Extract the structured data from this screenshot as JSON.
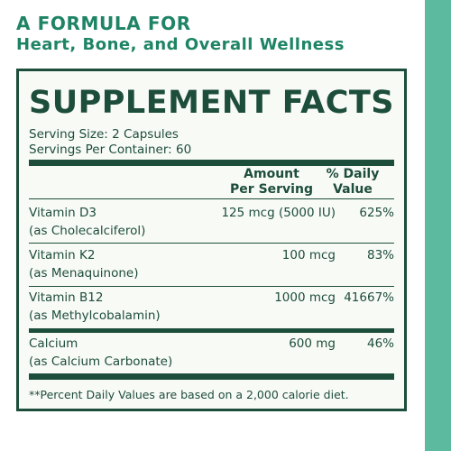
{
  "headline": {
    "line1": "A FORMULA FOR",
    "line2": "Heart, Bone, and Overall Wellness"
  },
  "panel": {
    "title": "SUPPLEMENT FACTS",
    "serving_size": "Serving Size: 2 Capsules",
    "servings_per_container": "Servings Per Container: 60",
    "columns": {
      "amount_line1": "Amount",
      "amount_line2": "Per Serving",
      "dv_line1": "% Daily",
      "dv_line2": "Value"
    },
    "rows": [
      {
        "name": "Vitamin D3",
        "source": "(as Cholecalciferol)",
        "amount": "125 mcg (5000 IU)",
        "dv": "625%"
      },
      {
        "name": "Vitamin K2",
        "source": "(as Menaquinone)",
        "amount": "100 mcg",
        "dv": "83%"
      },
      {
        "name": "Vitamin B12",
        "source": "(as Methylcobalamin)",
        "amount": "1000 mcg",
        "dv": "41667%"
      },
      {
        "name": "Calcium",
        "source": "(as Calcium Carbonate)",
        "amount": "600 mg",
        "dv": "46%"
      }
    ],
    "footnote": "**Percent Daily Values are based on a 2,000 calorie diet."
  },
  "colors": {
    "brand_green": "#1e8465",
    "dark_green": "#1d4d3b",
    "side_band": "#5cba9e",
    "panel_bg": "#f8faf6"
  }
}
